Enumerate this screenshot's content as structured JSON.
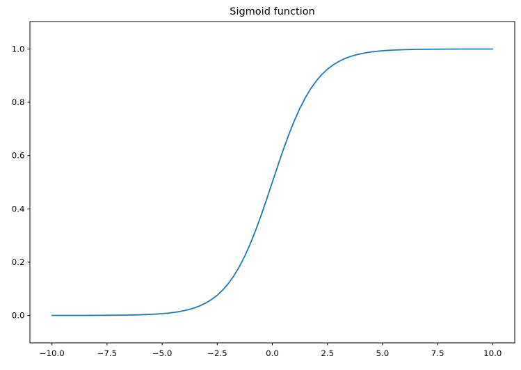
{
  "figure": {
    "background": "#ffffff"
  },
  "chart_data": {
    "type": "line",
    "title": "Sigmoid function",
    "xlabel": "",
    "ylabel": "",
    "grid": false,
    "xlim": [
      -11,
      11
    ],
    "ylim": [
      -0.103,
      1.103
    ],
    "xticks": {
      "values": [
        -10.0,
        -7.5,
        -5.0,
        -2.5,
        0.0,
        2.5,
        5.0,
        7.5,
        10.0
      ],
      "labels": [
        "−10.0",
        "−7.5",
        "−5.0",
        "−2.5",
        "0.0",
        "2.5",
        "5.0",
        "7.5",
        "10.0"
      ]
    },
    "yticks": {
      "values": [
        0.0,
        0.2,
        0.4,
        0.6,
        0.8,
        1.0
      ],
      "labels": [
        "0.0",
        "0.2",
        "0.4",
        "0.6",
        "0.8",
        "1.0"
      ]
    },
    "x": [
      -10.0,
      -9.75,
      -9.5,
      -9.25,
      -9.0,
      -8.75,
      -8.5,
      -8.25,
      -8.0,
      -7.75,
      -7.5,
      -7.25,
      -7.0,
      -6.75,
      -6.5,
      -6.25,
      -6.0,
      -5.75,
      -5.5,
      -5.25,
      -5.0,
      -4.75,
      -4.5,
      -4.25,
      -4.0,
      -3.75,
      -3.5,
      -3.25,
      -3.0,
      -2.75,
      -2.5,
      -2.25,
      -2.0,
      -1.75,
      -1.5,
      -1.25,
      -1.0,
      -0.75,
      -0.5,
      -0.25,
      0.0,
      0.25,
      0.5,
      0.75,
      1.0,
      1.25,
      1.5,
      1.75,
      2.0,
      2.25,
      2.5,
      2.75,
      3.0,
      3.25,
      3.5,
      3.75,
      4.0,
      4.25,
      4.5,
      4.75,
      5.0,
      5.25,
      5.5,
      5.75,
      6.0,
      6.25,
      6.5,
      6.75,
      7.0,
      7.25,
      7.5,
      7.75,
      8.0,
      8.25,
      8.5,
      8.75,
      9.0,
      9.25,
      9.5,
      9.75,
      10.0
    ],
    "series": [
      {
        "name": "sigmoid",
        "color": "#1f77b4",
        "values": [
          5e-05,
          6e-05,
          7e-05,
          0.0001,
          0.00012,
          0.00016,
          0.0002,
          0.00026,
          0.00034,
          0.00043,
          0.00055,
          0.00071,
          0.00091,
          0.00117,
          0.0015,
          0.00193,
          0.00247,
          0.00317,
          0.00407,
          0.00522,
          0.00669,
          0.00858,
          0.01099,
          0.01406,
          0.01799,
          0.02298,
          0.02931,
          0.03733,
          0.04743,
          0.06009,
          0.07586,
          0.09534,
          0.1192,
          0.14805,
          0.18243,
          0.2227,
          0.26894,
          0.32082,
          0.37754,
          0.43782,
          0.5,
          0.56218,
          0.62246,
          0.67918,
          0.73106,
          0.7773,
          0.81757,
          0.85195,
          0.8808,
          0.90466,
          0.92414,
          0.93991,
          0.95257,
          0.96267,
          0.97069,
          0.97702,
          0.98201,
          0.98594,
          0.98901,
          0.99142,
          0.99331,
          0.99478,
          0.99593,
          0.99683,
          0.99753,
          0.99807,
          0.9985,
          0.99883,
          0.99909,
          0.99929,
          0.99945,
          0.99957,
          0.99966,
          0.99974,
          0.9998,
          0.99984,
          0.99988,
          0.9999,
          0.99993,
          0.99994,
          0.99995
        ]
      }
    ]
  }
}
